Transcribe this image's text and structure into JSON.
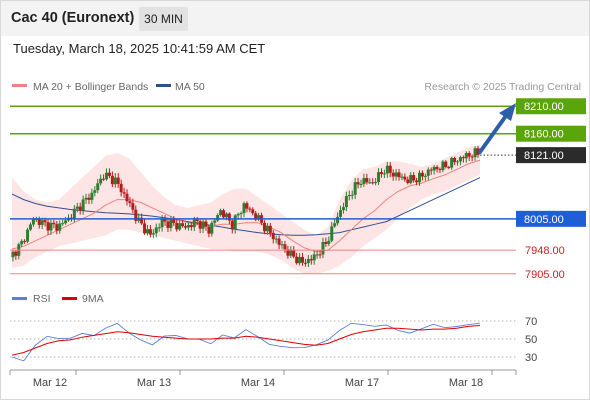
{
  "header": {
    "title": "Cac 40 (Euronext)",
    "interval": "30 MIN",
    "datetime": "Tuesday, March 18, 2025 10:41:59 AM CET"
  },
  "legend": {
    "items": [
      {
        "label": "MA 20 + Bollinger Bands",
        "color": "#f08080"
      },
      {
        "label": "MA 50",
        "color": "#2f4f8f"
      }
    ],
    "copyright": "Research © 2025 Trading Central"
  },
  "rsi_legend": {
    "items": [
      {
        "label": "RSI",
        "color": "#5b7fd6"
      },
      {
        "label": "9MA",
        "color": "#e00000"
      }
    ]
  },
  "colors": {
    "resistance": "#5aa50a",
    "pivot": "#1f5fd6",
    "support": "#f08080",
    "current": "#2b2b2b",
    "candle_up": "#2e7d32",
    "candle_down": "#b71c1c",
    "band_fill": "#fde0e0",
    "ma20": "#f08080",
    "ma50": "#2f4f8f",
    "arrow": "#2d5fa8"
  },
  "chart_data": [
    {
      "type": "candlestick",
      "title": "Cac 40 (Euronext)",
      "interval": "30 MIN",
      "x_labels": [
        "Mar 12",
        "Mar 13",
        "Mar 14",
        "Mar 17",
        "Mar 18"
      ],
      "ylim": [
        7890,
        8225
      ],
      "levels": [
        {
          "value": 8210.0,
          "label": "8210.00",
          "kind": "resistance"
        },
        {
          "value": 8160.0,
          "label": "8160.00",
          "kind": "resistance"
        },
        {
          "value": 8121.0,
          "label": "8121.00",
          "kind": "current"
        },
        {
          "value": 8005.0,
          "label": "8005.00",
          "kind": "pivot"
        },
        {
          "value": 7948.0,
          "label": "7948.00",
          "kind": "support"
        },
        {
          "value": 7905.0,
          "label": "7905.00",
          "kind": "support"
        }
      ],
      "close_series": [
        7935,
        7960,
        8005,
        7995,
        7990,
        8005,
        8030,
        8050,
        8085,
        8075,
        8040,
        8000,
        7975,
        8000,
        7995,
        7990,
        8000,
        7985,
        8020,
        7995,
        8030,
        8010,
        7985,
        7960,
        7940,
        7925,
        7935,
        7960,
        8010,
        8050,
        8075,
        8070,
        8095,
        8085,
        8075,
        8080,
        8095,
        8100,
        8110,
        8120,
        8125
      ],
      "ma20_series": [
        7950,
        7955,
        7965,
        7975,
        7985,
        7995,
        8005,
        8015,
        8030,
        8040,
        8040,
        8035,
        8025,
        8015,
        8005,
        7998,
        7995,
        7992,
        7995,
        7995,
        7998,
        7998,
        7990,
        7980,
        7965,
        7952,
        7945,
        7948,
        7965,
        7985,
        8005,
        8020,
        8040,
        8055,
        8065,
        8070,
        8078,
        8085,
        8095,
        8105,
        8112
      ],
      "bb_upper_series": [
        8080,
        8055,
        8040,
        8035,
        8040,
        8060,
        8080,
        8100,
        8120,
        8125,
        8115,
        8090,
        8065,
        8045,
        8030,
        8025,
        8030,
        8035,
        8050,
        8060,
        8060,
        8045,
        8030,
        8015,
        8000,
        7985,
        7975,
        7990,
        8040,
        8075,
        8095,
        8100,
        8110,
        8110,
        8105,
        8100,
        8105,
        8115,
        8125,
        8135,
        8140
      ],
      "bb_lower_series": [
        7915,
        7920,
        7935,
        7945,
        7955,
        7960,
        7965,
        7970,
        7975,
        7985,
        7985,
        7980,
        7975,
        7970,
        7965,
        7960,
        7955,
        7950,
        7950,
        7945,
        7945,
        7945,
        7940,
        7930,
        7915,
        7905,
        7905,
        7910,
        7920,
        7935,
        7955,
        7970,
        7985,
        8005,
        8025,
        8040,
        8050,
        8055,
        8065,
        8075,
        8085
      ],
      "ma50_series": [
        8050,
        8040,
        8033,
        8028,
        8025,
        8022,
        8020,
        8018,
        8016,
        8015,
        8014,
        8012,
        8010,
        8007,
        8004,
        8000,
        7997,
        7993,
        7990,
        7986,
        7983,
        7980,
        7978,
        7976,
        7975,
        7975,
        7976,
        7978,
        7980,
        7985,
        7990,
        7995,
        8000,
        8010,
        8020,
        8030,
        8040,
        8050,
        8060,
        8070,
        8080
      ]
    },
    {
      "type": "line",
      "ylim": [
        20,
        80
      ],
      "y_ticks": [
        70,
        50,
        30
      ],
      "series": [
        {
          "name": "RSI",
          "color": "#5b7fd6",
          "values": [
            30,
            28,
            45,
            52,
            48,
            50,
            58,
            56,
            62,
            65,
            55,
            50,
            46,
            54,
            52,
            48,
            50,
            47,
            56,
            50,
            58,
            52,
            46,
            44,
            40,
            38,
            42,
            50,
            62,
            68,
            64,
            62,
            66,
            62,
            58,
            60,
            64,
            62,
            66,
            68,
            67
          ]
        },
        {
          "name": "9MA",
          "color": "#e00000",
          "values": [
            32,
            35,
            40,
            45,
            48,
            49,
            52,
            54,
            56,
            58,
            57,
            55,
            53,
            52,
            51,
            50,
            50,
            50,
            51,
            51,
            53,
            52,
            50,
            48,
            46,
            44,
            43,
            45,
            50,
            55,
            58,
            60,
            62,
            62,
            61,
            60,
            61,
            61,
            62,
            64,
            65
          ]
        }
      ]
    }
  ]
}
